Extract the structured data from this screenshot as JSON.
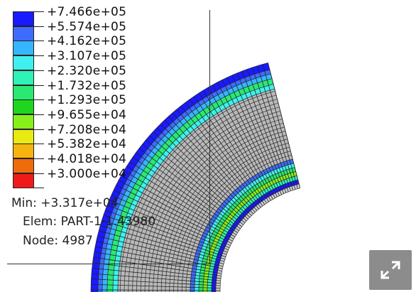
{
  "legend": {
    "entries": [
      {
        "label": "+7.466e+05",
        "color": "#1a1aff"
      },
      {
        "label": "+5.574e+05",
        "color": "#3f6cff"
      },
      {
        "label": "+4.162e+05",
        "color": "#35b6ff"
      },
      {
        "label": "+3.107e+05",
        "color": "#3ff0ee"
      },
      {
        "label": "+2.320e+05",
        "color": "#2ef2b6"
      },
      {
        "label": "+1.732e+05",
        "color": "#2ae873"
      },
      {
        "label": "+1.293e+05",
        "color": "#1fd61f"
      },
      {
        "label": "+9.655e+04",
        "color": "#87ef1a"
      },
      {
        "label": "+7.208e+04",
        "color": "#e8ea11"
      },
      {
        "label": "+5.382e+04",
        "color": "#f5b40e"
      },
      {
        "label": "+4.018e+04",
        "color": "#ef6b0c"
      },
      {
        "label": "+3.000e+04",
        "color": "#ef1b1b"
      }
    ]
  },
  "info": {
    "min": "Min: +3.317e+04",
    "elem": "Elem: PART-1-1.43980",
    "node": "Node: 4987"
  },
  "controls": {
    "expand_icon": "expand-arrows-icon"
  }
}
